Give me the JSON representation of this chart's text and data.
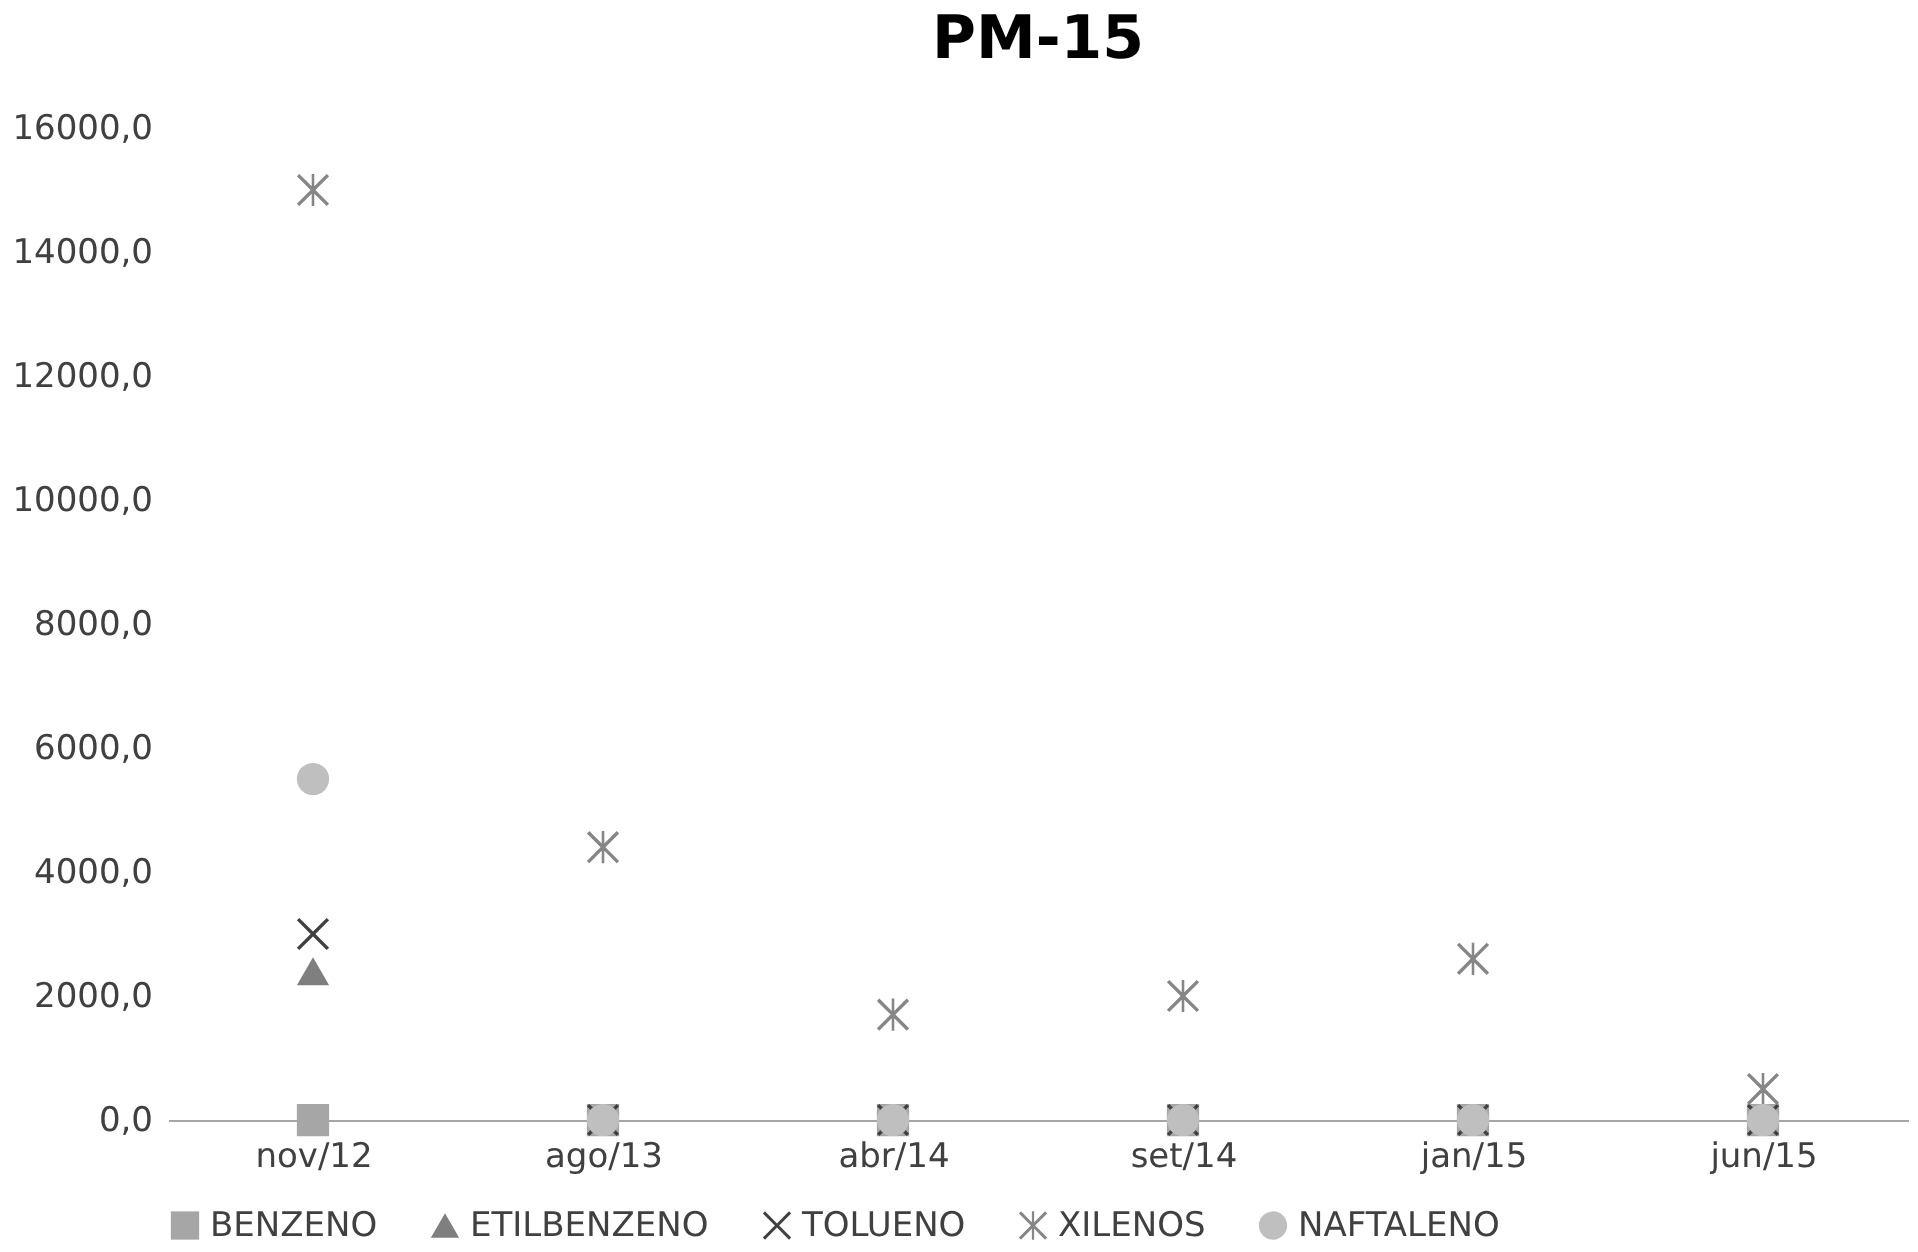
{
  "chart_data": {
    "type": "scatter",
    "title": "PM-15",
    "categories": [
      "nov/12",
      "ago/13",
      "abr/14",
      "set/14",
      "jan/15",
      "jun/15"
    ],
    "series": [
      {
        "name": "BENZENO",
        "color": "#a6a6a6",
        "marker": "square",
        "values": [
          0,
          0,
          0,
          0,
          0,
          0
        ]
      },
      {
        "name": "ETILBENZENO",
        "color": "#7f7f7f",
        "marker": "triangle",
        "values": [
          2400,
          null,
          null,
          null,
          null,
          null
        ]
      },
      {
        "name": "TOLUENO",
        "color": "#404040",
        "marker": "cross",
        "values": [
          3000,
          0,
          0,
          0,
          0,
          0
        ]
      },
      {
        "name": "XILENOS",
        "color": "#868686",
        "marker": "star",
        "values": [
          15000,
          4400,
          1700,
          2000,
          2600,
          500
        ]
      },
      {
        "name": "NAFTALENO",
        "color": "#bfbfbf",
        "marker": "circle",
        "values": [
          5500,
          0,
          0,
          0,
          0,
          0
        ]
      }
    ],
    "ylim": [
      0,
      16000
    ],
    "yticks": [
      {
        "value": 0,
        "label": "0,0"
      },
      {
        "value": 2000,
        "label": "2000,0"
      },
      {
        "value": 4000,
        "label": "4000,0"
      },
      {
        "value": 6000,
        "label": "6000,0"
      },
      {
        "value": 8000,
        "label": "8000,0"
      },
      {
        "value": 10000,
        "label": "10000,0"
      },
      {
        "value": 12000,
        "label": "12000,0"
      },
      {
        "value": 14000,
        "label": "14000,0"
      },
      {
        "value": 16000,
        "label": "16000,0"
      }
    ],
    "grid": false,
    "legend": "bottom"
  }
}
